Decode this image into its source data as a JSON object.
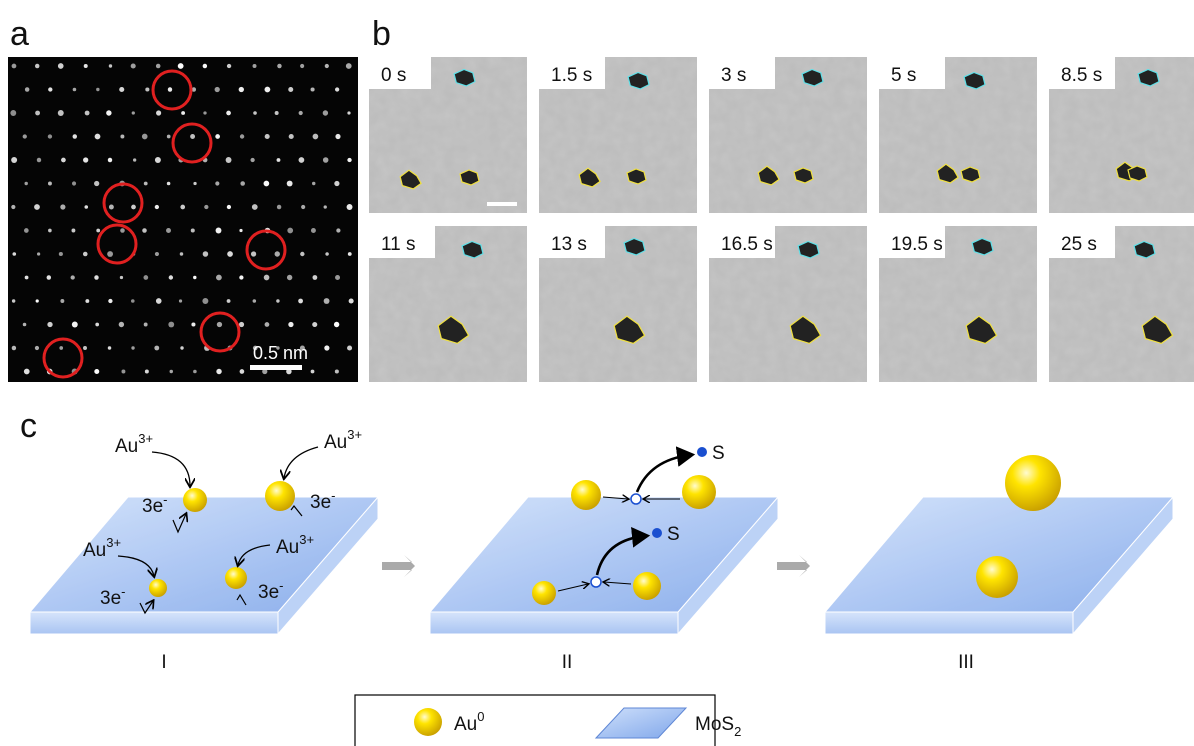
{
  "panels": {
    "a": {
      "label": "a",
      "scale_bar": "0.5 nm"
    },
    "b": {
      "label": "b",
      "frames": [
        "0 s",
        "1.5 s",
        "3 s",
        "5 s",
        "8.5 s",
        "11 s",
        "13 s",
        "16.5 s",
        "19.5 s",
        "25 s"
      ]
    },
    "c": {
      "label": "c",
      "stages": [
        "I",
        "II",
        "III"
      ],
      "ion": {
        "base": "Au",
        "charge": "3+"
      },
      "electrons": {
        "base": "3e",
        "charge": "-"
      },
      "sulfur": "S"
    }
  },
  "legend": {
    "gold": {
      "base": "Au",
      "sup": "0"
    },
    "support": {
      "base": "MoS",
      "sub": "2"
    }
  }
}
